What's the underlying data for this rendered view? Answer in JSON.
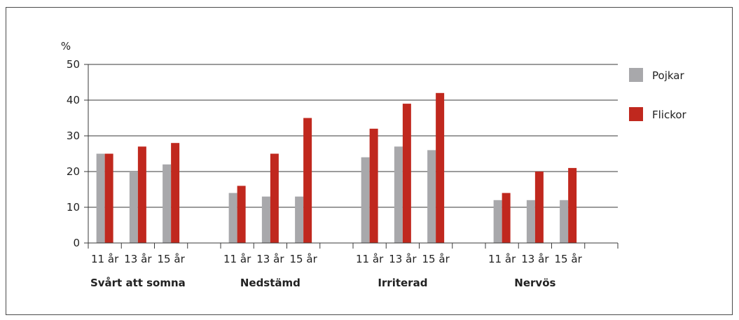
{
  "chart_data": {
    "type": "bar",
    "ylabel": "%",
    "ylim": [
      0,
      50
    ],
    "yticks": [
      0,
      10,
      20,
      30,
      40,
      50
    ],
    "groups": [
      "Svårt att somna",
      "Nedstämd",
      "Irriterad",
      "Nervös"
    ],
    "ages": [
      "11 år",
      "13 år",
      "15 år"
    ],
    "series": [
      {
        "name": "Pojkar",
        "color": "#a8a8ab",
        "values": [
          [
            25,
            20,
            22
          ],
          [
            14,
            13,
            13
          ],
          [
            24,
            27,
            26
          ],
          [
            12,
            12,
            12
          ]
        ]
      },
      {
        "name": "Flickor",
        "color": "#c0281e",
        "values": [
          [
            25,
            27,
            28
          ],
          [
            16,
            25,
            35
          ],
          [
            32,
            39,
            42
          ],
          [
            14,
            20,
            21
          ]
        ]
      }
    ],
    "grid": true,
    "legend_position": "right"
  }
}
